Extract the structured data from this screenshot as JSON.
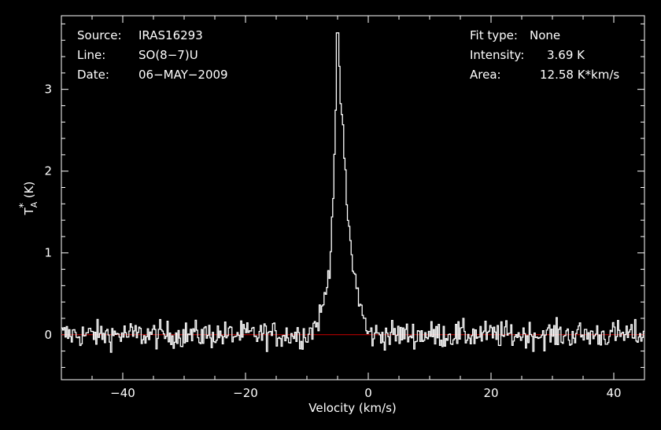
{
  "chart_data": {
    "type": "line",
    "title": "",
    "xlabel": "Velocity (km/s)",
    "ylabel_main": "T",
    "ylabel_sup": "*",
    "ylabel_sub": "A",
    "ylabel_unit": "(K)",
    "xlim": [
      -50,
      45
    ],
    "ylim": [
      -0.55,
      3.9
    ],
    "xticks": [
      -40,
      -20,
      0,
      20,
      40
    ],
    "xtick_labels": [
      "−40",
      "−20",
      "0",
      "20",
      "40"
    ],
    "yticks": [
      0,
      1,
      2,
      3
    ],
    "ytick_labels": [
      "0",
      "1",
      "2",
      "3"
    ],
    "baseline": 0,
    "series": [
      {
        "color": "#ffffff",
        "channel_width": 0.2,
        "x_start": -50,
        "x_end": 45,
        "peak": {
          "x": -4.9,
          "y": 3.69
        },
        "noise_rms": 0.15,
        "profile_points": [
          [
            -50,
            0.0
          ],
          [
            -10,
            0.0
          ],
          [
            -8.5,
            0.12
          ],
          [
            -7.5,
            0.3
          ],
          [
            -6.5,
            0.7
          ],
          [
            -6.0,
            1.2
          ],
          [
            -5.5,
            2.2
          ],
          [
            -5.2,
            3.1
          ],
          [
            -4.9,
            3.69
          ],
          [
            -4.6,
            3.0
          ],
          [
            -4.2,
            2.6
          ],
          [
            -3.8,
            2.0
          ],
          [
            -3.3,
            1.4
          ],
          [
            -2.8,
            1.05
          ],
          [
            -2.3,
            0.75
          ],
          [
            -1.8,
            0.55
          ],
          [
            -1.2,
            0.35
          ],
          [
            -0.6,
            0.15
          ],
          [
            0.0,
            0.0
          ],
          [
            45,
            0.0
          ]
        ]
      }
    ],
    "baseline_color": "#cc0000"
  },
  "info_left": {
    "source_label": "Source:",
    "source_value": "IRAS16293",
    "line_label": "Line:",
    "line_value": "SO(8−7)U",
    "date_label": "Date:",
    "date_value": "06−MAY−2009"
  },
  "info_right": {
    "fit_label": "Fit type:",
    "fit_value": "None",
    "intensity_label": "Intensity:",
    "intensity_value": "3.69 K",
    "area_label": "Area:",
    "area_value": "12.58 K*km/s"
  }
}
